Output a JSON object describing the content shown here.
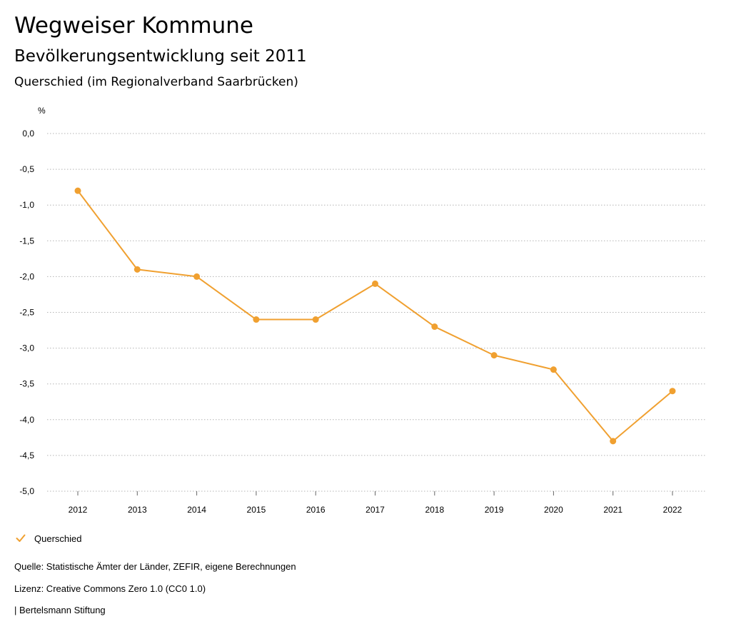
{
  "header": {
    "title": "Wegweiser Kommune",
    "subtitle": "Bevölkerungsentwicklung seit 2011",
    "region": "Querschied (im Regionalverband Saarbrücken)"
  },
  "colors": {
    "series": "#F0A030",
    "grid": "#b4b4b4",
    "text": "#000000"
  },
  "legend": {
    "label": "Querschied",
    "icon": "check-icon"
  },
  "footer": {
    "source": "Quelle: Statistische Ämter der Länder, ZEFIR, eigene Berechnungen",
    "license": "Lizenz: Creative Commons Zero 1.0 (CC0 1.0)",
    "publisher": "| Bertelsmann Stiftung"
  },
  "chart_data": {
    "type": "line",
    "title": "Bevölkerungsentwicklung seit 2011",
    "ylabel": "%",
    "xlabel": "",
    "categories": [
      "2012",
      "2013",
      "2014",
      "2015",
      "2016",
      "2017",
      "2018",
      "2019",
      "2020",
      "2021",
      "2022"
    ],
    "series": [
      {
        "name": "Querschied",
        "values": [
          -0.8,
          -1.9,
          -2.0,
          -2.6,
          -2.6,
          -2.1,
          -2.7,
          -3.1,
          -3.3,
          -4.3,
          -3.6
        ]
      }
    ],
    "ylim": [
      -5.0,
      0.0
    ],
    "yticks": [
      0.0,
      -0.5,
      -1.0,
      -1.5,
      -2.0,
      -2.5,
      -3.0,
      -3.5,
      -4.0,
      -4.5,
      -5.0
    ],
    "ytick_labels": [
      "0,0",
      "-0,5",
      "-1,0",
      "-1,5",
      "-2,0",
      "-2,5",
      "-3,0",
      "-3,5",
      "-4,0",
      "-4,5",
      "-5,0"
    ],
    "grid": true,
    "legend_position": "bottom-left"
  }
}
